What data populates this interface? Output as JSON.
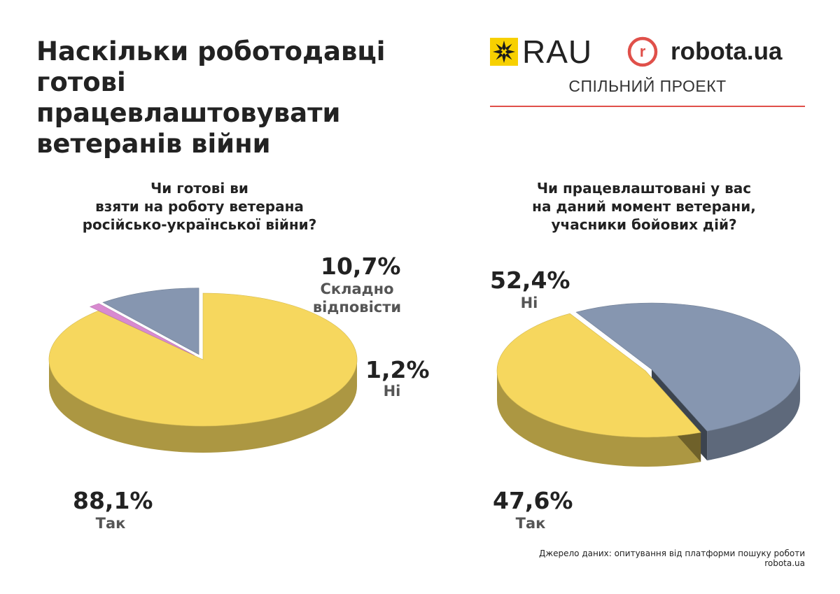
{
  "title": [
    "Наскільки роботодавці",
    "готові працевлаштовувати",
    "ветеранів війни"
  ],
  "logos": {
    "rau": "RAU",
    "robota": "robota.ua",
    "robota_mark": "r",
    "joint_project": "СПІЛЬНИЙ ПРОЕКТ"
  },
  "colors": {
    "yes": "#f6d75e",
    "hard": "#8696b0",
    "no": "#d88ad0",
    "rule": "#e0504a",
    "rau_yellow": "#f7d000"
  },
  "chart_data": [
    {
      "type": "pie",
      "title": [
        "Чи готові ви",
        "взяти на роботу ветерана",
        "російсько-української війни?"
      ],
      "slices": [
        {
          "label": "Так",
          "value": 88.1,
          "value_label": "88,1%",
          "color": "#f6d75e"
        },
        {
          "label": "Ні",
          "value": 1.2,
          "value_label": "1,2%",
          "color": "#d88ad0"
        },
        {
          "label": "Складно відповісти",
          "label_lines": [
            "Складно",
            "відповісти"
          ],
          "value": 10.7,
          "value_label": "10,7%",
          "color": "#8696b0"
        }
      ]
    },
    {
      "type": "pie",
      "title": [
        "Чи працевлаштовані у вас",
        "на даний момент ветерани,",
        "учасники бойових дій?"
      ],
      "slices": [
        {
          "label": "Ні",
          "value": 52.4,
          "value_label": "52,4%",
          "color": "#8696b0"
        },
        {
          "label": "Так",
          "value": 47.6,
          "value_label": "47,6%",
          "color": "#f6d75e"
        }
      ]
    }
  ],
  "source": "Джерело даних:  опитування від платформи пошуку роботи robota.ua"
}
